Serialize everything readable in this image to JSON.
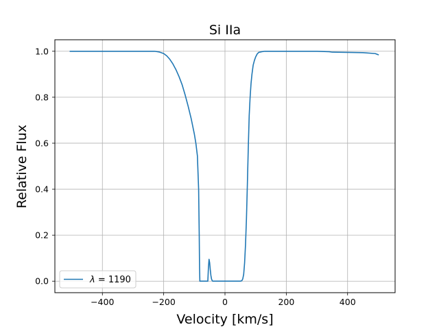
{
  "chart_data": {
    "type": "line",
    "title": "Si IIa",
    "xlabel": "Velocity [km/s]",
    "ylabel": "Relative Flux",
    "xlim": [
      -555,
      555
    ],
    "ylim": [
      -0.05,
      1.05
    ],
    "xticks": [
      -400,
      -200,
      0,
      200,
      400
    ],
    "xtick_labels": [
      "−400",
      "−200",
      "0",
      "200",
      "400"
    ],
    "yticks": [
      0.0,
      0.2,
      0.4,
      0.6,
      0.8,
      1.0
    ],
    "ytick_labels": [
      "0.0",
      "0.2",
      "0.4",
      "0.6",
      "0.8",
      "1.0"
    ],
    "grid": true,
    "legend_position": "lower-left",
    "series": [
      {
        "name": "λ = 1190",
        "legend_math_symbol": "λ",
        "legend_value_text": " = 1190",
        "color": "#1f77b4",
        "x": [
          -505,
          -400,
          -300,
          -230,
          -215,
          -200,
          -190,
          -180,
          -170,
          -160,
          -150,
          -140,
          -130,
          -120,
          -110,
          -100,
          -95,
          -90,
          -86,
          -84,
          -83,
          -82,
          -80,
          -70,
          -60,
          -56,
          -54,
          -52,
          -50,
          -48,
          -46,
          -44,
          -42,
          -40,
          -30,
          -20,
          0,
          20,
          40,
          50,
          55,
          58,
          61,
          64,
          67,
          70,
          73,
          76,
          79,
          82,
          85,
          88,
          92,
          96,
          100,
          105,
          110,
          120,
          130,
          150,
          200,
          300,
          340,
          350,
          400,
          450,
          490,
          500
        ],
        "y": [
          1.0,
          1.0,
          1.0,
          1.0,
          0.997,
          0.99,
          0.98,
          0.965,
          0.945,
          0.92,
          0.89,
          0.855,
          0.81,
          0.76,
          0.705,
          0.64,
          0.6,
          0.545,
          0.4,
          0.2,
          0.06,
          0.0,
          0.0,
          0.0,
          0.0,
          0.0,
          0.06,
          0.095,
          0.08,
          0.05,
          0.025,
          0.01,
          0.003,
          0.0,
          0.0,
          0.0,
          0.0,
          0.0,
          0.0,
          0.0,
          0.002,
          0.01,
          0.03,
          0.08,
          0.16,
          0.27,
          0.42,
          0.58,
          0.72,
          0.8,
          0.86,
          0.9,
          0.94,
          0.96,
          0.975,
          0.988,
          0.995,
          0.998,
          1.0,
          1.0,
          1.0,
          1.0,
          0.998,
          0.996,
          0.995,
          0.994,
          0.99,
          0.985
        ]
      }
    ]
  }
}
